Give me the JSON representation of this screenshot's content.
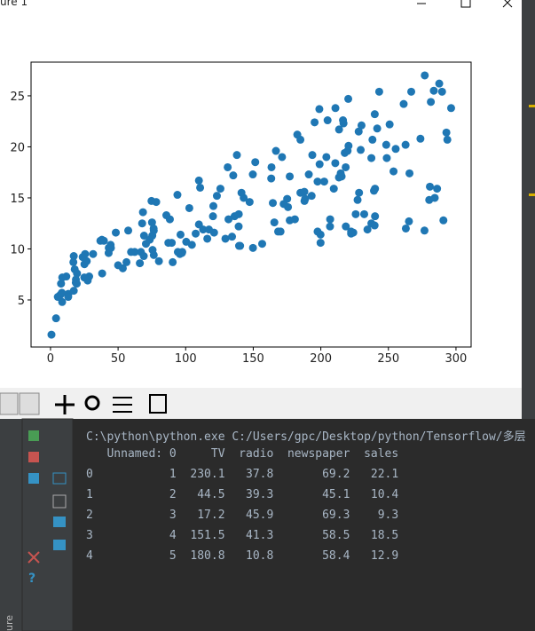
{
  "window": {
    "title": "ure 1"
  },
  "chart_data": {
    "type": "scatter",
    "x": [
      230.1,
      44.5,
      17.2,
      151.5,
      180.8,
      8.7,
      57.5,
      120.2,
      8.6,
      199.8,
      66.1,
      214.7,
      23.8,
      97.5,
      204.1,
      195.4,
      67.8,
      281.4,
      69.2,
      147.3,
      218.4,
      237.4,
      13.2,
      228.3,
      62.3,
      262.9,
      142.9,
      240.1,
      248.8,
      70.6,
      292.9,
      112.9,
      97.2,
      265.6,
      95.7,
      290.7,
      266.9,
      74.7,
      43.1,
      228,
      202.5,
      177,
      293.6,
      206.9,
      25.1,
      175.1,
      89.7,
      239.9,
      227.2,
      66.9,
      199.8,
      100.4,
      216.4,
      182.6,
      262.7,
      198.9,
      7.3,
      136.2,
      210.8,
      210.7,
      53.5,
      261.3,
      239.3,
      102.7,
      131.1,
      69,
      31.5,
      139.3,
      237.4,
      216.8,
      199.1,
      109.8,
      26.8,
      129.4,
      213.4,
      16.9,
      27.5,
      120.5,
      5.4,
      116,
      76.4,
      239.8,
      75.3,
      68.4,
      213.5,
      193.2,
      76.3,
      110.7,
      88.3,
      109.8,
      134.3,
      28.6,
      217.7,
      250.9,
      107.4,
      163.3,
      197.6,
      184.9,
      289.7,
      135.2,
      222.4,
      296.4,
      280.2,
      187.9,
      238.2,
      137.9,
      25,
      90.4,
      13.1,
      255.4,
      225.8,
      241.7,
      175.7,
      209.6,
      78.2,
      75.1,
      139.2,
      76.4,
      125.7,
      19.4,
      141.3,
      18.8,
      224,
      123.1,
      229.5,
      87.2,
      7.8,
      80.2,
      220.3,
      59.6,
      0.7,
      265.2,
      8.4,
      219.8,
      36.9,
      48.3,
      25.6,
      273.7,
      43,
      184.9,
      73.4,
      193.7,
      220.5,
      104.6,
      96.2,
      140.3,
      240.1,
      243.2,
      38,
      44.7,
      280.7,
      121,
      197.6,
      171.3,
      187.8,
      4.1,
      93.9,
      149.8,
      11.7,
      131.7,
      172.5,
      85.7,
      188.4,
      163.5,
      117.2,
      234.5,
      17.9,
      206.8,
      215.4,
      284.3,
      50,
      164.5,
      19.6,
      168.4,
      222.4,
      276.9,
      248.4,
      170.2,
      276.7,
      165.6,
      156.6,
      218.5,
      56.2,
      287.6,
      253.8,
      205,
      139.5,
      191.1,
      286,
      18.7,
      39.5,
      75.5,
      17.2,
      166.8,
      149.7,
      38.2,
      94.2,
      177,
      283.6,
      232.1
    ],
    "values": [
      22.1,
      10.4,
      9.3,
      18.5,
      12.9,
      7.2,
      11.8,
      13.2,
      4.8,
      10.6,
      8.6,
      17.4,
      9.2,
      9.7,
      19,
      22.4,
      12.5,
      24.4,
      11.3,
      14.6,
      18,
      12.5,
      5.6,
      15.5,
      9.7,
      12,
      15,
      15.9,
      18.9,
      10.5,
      21.4,
      11.9,
      9.6,
      17.4,
      9.5,
      12.8,
      25.4,
      14.7,
      10.1,
      21.5,
      16.6,
      17.1,
      20.7,
      12.9,
      8.5,
      14.9,
      10.6,
      23.2,
      14.8,
      9.7,
      11.4,
      10.7,
      22.6,
      21.2,
      20.2,
      23.7,
      5.5,
      13.2,
      23.8,
      18.4,
      8.1,
      24.2,
      15.7,
      14,
      18,
      9.3,
      9.5,
      13.4,
      18.9,
      22.3,
      18.3,
      12.4,
      8.8,
      11,
      17,
      8.7,
      6.9,
      14.2,
      5.3,
      11,
      11.8,
      12.3,
      11.3,
      13.6,
      21.7,
      15.2,
      12,
      16,
      12.9,
      16.7,
      11.2,
      7.3,
      19.4,
      22.2,
      11.5,
      16.9,
      11.7,
      15.5,
      25.4,
      17.2,
      11.7,
      23.8,
      14.8,
      14.7,
      20.7,
      19.2,
      7.2,
      8.7,
      5.3,
      19.8,
      13.4,
      21.8,
      14.1,
      15.9,
      14.6,
      12.6,
      12.2,
      9.4,
      15.9,
      6.6,
      15.5,
      7,
      11.6,
      15.2,
      19.7,
      10.6,
      6.6,
      8.8,
      24.7,
      9.7,
      1.6,
      12.7,
      5.7,
      19.6,
      10.8,
      11.6,
      9.5,
      20.8,
      9.6,
      20.7,
      10.9,
      19.2,
      20.1,
      10.4,
      11.4,
      10.3,
      13.2,
      25.4,
      10.9,
      10.1,
      16.1,
      11.6,
      16.6,
      19,
      15.6,
      3.2,
      15.3,
      10.1,
      7.3,
      12.9,
      14.4,
      13.3,
      14.9,
      18,
      11.9,
      11.9,
      8,
      12.2,
      17.1,
      15,
      8.4,
      14.5,
      7.6,
      11.7,
      11.5,
      27,
      20.2,
      11.7,
      11.8,
      12.6,
      10.5,
      12.2,
      8.7,
      26.2,
      17.6,
      22.6,
      10.3,
      17.3,
      15.9,
      6.7,
      10.8,
      9.9,
      5.9,
      19.6,
      17.3,
      7.6,
      9.7,
      12.8,
      25.5,
      13.4
    ],
    "color": "#1f77b4",
    "xlim": [
      -14.4,
      311.2
    ],
    "ylim": [
      0.39,
      28.3
    ],
    "xticks": [
      0,
      50,
      100,
      150,
      200,
      250,
      300
    ],
    "yticks": [
      5,
      10,
      15,
      20,
      25
    ]
  },
  "console": {
    "lines": [
      "C:\\python\\python.exe C:/Users/gpc/Desktop/python/Tensorflow/多层",
      "   Unnamed: 0     TV  radio  newspaper  sales",
      "0           1  230.1   37.8       69.2   22.1",
      "1           2   44.5   39.3       45.1   10.4",
      "2           3   17.2   45.9       69.3    9.3",
      "3           4  151.5   41.3       58.5   18.5",
      "4           5  180.8   10.8       58.4   12.9"
    ]
  },
  "side_label": "ure"
}
